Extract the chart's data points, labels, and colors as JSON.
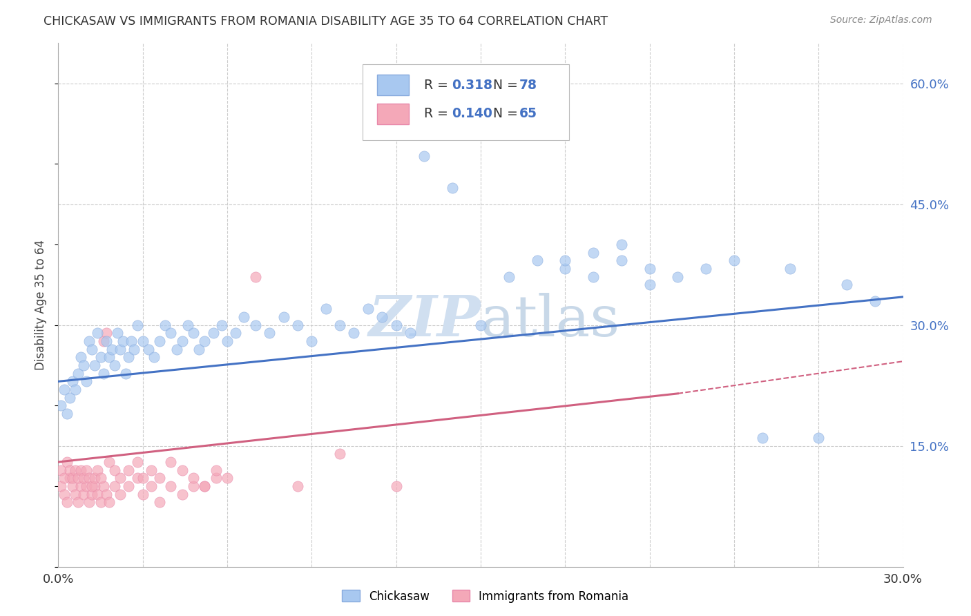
{
  "title": "CHICKASAW VS IMMIGRANTS FROM ROMANIA DISABILITY AGE 35 TO 64 CORRELATION CHART",
  "source": "Source: ZipAtlas.com",
  "ylabel": "Disability Age 35 to 64",
  "legend_1_label": "Chickasaw",
  "legend_2_label": "Immigrants from Romania",
  "R1": "0.318",
  "N1": "78",
  "R2": "0.140",
  "N2": "65",
  "color_blue": "#a8c8f0",
  "color_pink": "#f4a8b8",
  "color_blue_line": "#4472c4",
  "color_pink_line": "#d06080",
  "watermark_color": "#d0dff0",
  "xlim": [
    0.0,
    0.3
  ],
  "ylim": [
    0.0,
    0.65
  ],
  "right_yticks": [
    0.15,
    0.3,
    0.45,
    0.6
  ],
  "right_yticklabels": [
    "15.0%",
    "30.0%",
    "45.0%",
    "60.0%"
  ],
  "blue_line_x0": 0.0,
  "blue_line_y0": 0.23,
  "blue_line_x1": 0.3,
  "blue_line_y1": 0.335,
  "pink_line_x0": 0.0,
  "pink_line_y0": 0.13,
  "pink_line_x1_solid": 0.22,
  "pink_line_y1_solid": 0.215,
  "pink_line_x1_dash": 0.3,
  "pink_line_y1_dash": 0.255,
  "blue_x": [
    0.001,
    0.002,
    0.003,
    0.004,
    0.005,
    0.006,
    0.007,
    0.008,
    0.009,
    0.01,
    0.011,
    0.012,
    0.013,
    0.014,
    0.015,
    0.016,
    0.017,
    0.018,
    0.019,
    0.02,
    0.021,
    0.022,
    0.023,
    0.024,
    0.025,
    0.026,
    0.027,
    0.028,
    0.03,
    0.032,
    0.034,
    0.036,
    0.038,
    0.04,
    0.042,
    0.044,
    0.046,
    0.048,
    0.05,
    0.052,
    0.055,
    0.058,
    0.06,
    0.063,
    0.066,
    0.07,
    0.075,
    0.08,
    0.085,
    0.09,
    0.095,
    0.1,
    0.105,
    0.11,
    0.115,
    0.12,
    0.125,
    0.13,
    0.14,
    0.15,
    0.16,
    0.17,
    0.18,
    0.19,
    0.2,
    0.21,
    0.22,
    0.23,
    0.24,
    0.25,
    0.26,
    0.27,
    0.28,
    0.29,
    0.2,
    0.18,
    0.19,
    0.21
  ],
  "blue_y": [
    0.2,
    0.22,
    0.19,
    0.21,
    0.23,
    0.22,
    0.24,
    0.26,
    0.25,
    0.23,
    0.28,
    0.27,
    0.25,
    0.29,
    0.26,
    0.24,
    0.28,
    0.26,
    0.27,
    0.25,
    0.29,
    0.27,
    0.28,
    0.24,
    0.26,
    0.28,
    0.27,
    0.3,
    0.28,
    0.27,
    0.26,
    0.28,
    0.3,
    0.29,
    0.27,
    0.28,
    0.3,
    0.29,
    0.27,
    0.28,
    0.29,
    0.3,
    0.28,
    0.29,
    0.31,
    0.3,
    0.29,
    0.31,
    0.3,
    0.28,
    0.32,
    0.3,
    0.29,
    0.32,
    0.31,
    0.3,
    0.29,
    0.51,
    0.47,
    0.3,
    0.36,
    0.38,
    0.37,
    0.36,
    0.38,
    0.37,
    0.36,
    0.37,
    0.38,
    0.16,
    0.37,
    0.16,
    0.35,
    0.33,
    0.4,
    0.38,
    0.39,
    0.35
  ],
  "pink_x": [
    0.001,
    0.002,
    0.003,
    0.004,
    0.005,
    0.006,
    0.007,
    0.008,
    0.009,
    0.01,
    0.011,
    0.012,
    0.013,
    0.014,
    0.015,
    0.016,
    0.017,
    0.018,
    0.02,
    0.022,
    0.025,
    0.028,
    0.03,
    0.033,
    0.036,
    0.04,
    0.044,
    0.048,
    0.052,
    0.056,
    0.001,
    0.002,
    0.003,
    0.004,
    0.005,
    0.006,
    0.007,
    0.008,
    0.009,
    0.01,
    0.011,
    0.012,
    0.013,
    0.014,
    0.015,
    0.016,
    0.017,
    0.018,
    0.02,
    0.022,
    0.025,
    0.028,
    0.03,
    0.033,
    0.036,
    0.04,
    0.044,
    0.048,
    0.052,
    0.056,
    0.06,
    0.07,
    0.085,
    0.1,
    0.12
  ],
  "pink_y": [
    0.1,
    0.09,
    0.08,
    0.11,
    0.1,
    0.09,
    0.08,
    0.1,
    0.09,
    0.1,
    0.08,
    0.09,
    0.1,
    0.09,
    0.08,
    0.1,
    0.09,
    0.08,
    0.1,
    0.09,
    0.1,
    0.11,
    0.09,
    0.1,
    0.08,
    0.1,
    0.09,
    0.1,
    0.1,
    0.11,
    0.12,
    0.11,
    0.13,
    0.12,
    0.11,
    0.12,
    0.11,
    0.12,
    0.11,
    0.12,
    0.11,
    0.1,
    0.11,
    0.12,
    0.11,
    0.28,
    0.29,
    0.13,
    0.12,
    0.11,
    0.12,
    0.13,
    0.11,
    0.12,
    0.11,
    0.13,
    0.12,
    0.11,
    0.1,
    0.12,
    0.11,
    0.36,
    0.1,
    0.14,
    0.1
  ]
}
